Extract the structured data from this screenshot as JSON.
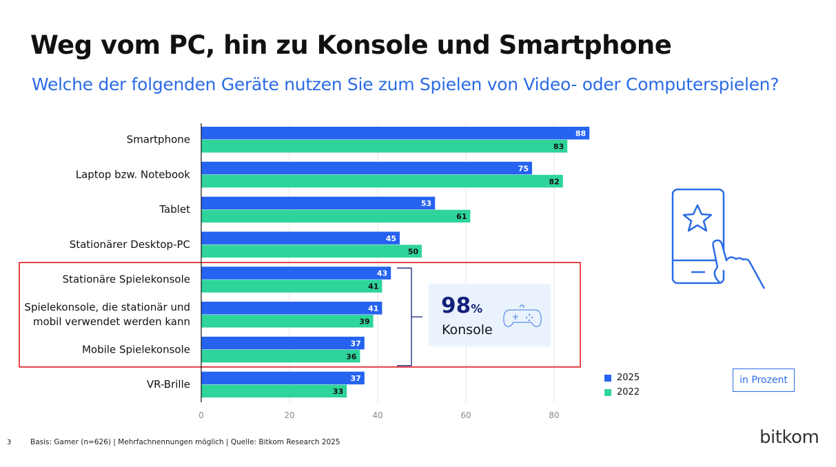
{
  "title": "Weg vom PC, hin zu Konsole und Smartphone",
  "subtitle": "Welche der folgenden Geräte nutzen Sie zum Spielen von Video- oder Computerspielen?",
  "callout": {
    "value": "98",
    "unit": "%",
    "label": "Konsole",
    "icon": "gamepad-icon"
  },
  "decor_icon": "smartphone-touch-star-icon",
  "unit_note": "in Prozent",
  "footer": {
    "page_number": "3",
    "note": "Basis: Gamer (n=626) | Mehrfachnennungen möglich | Quelle: Bitkom Research 2025"
  },
  "brand": "bitkom",
  "colors": {
    "series_2025": "#2563f0",
    "series_2022": "#2ed49a",
    "accent": "#2a6be6",
    "highlight": "#e0161e",
    "dark": "#121f7a"
  },
  "chart_data": {
    "type": "bar",
    "orientation": "horizontal",
    "categories": [
      "Smartphone",
      "Laptop bzw. Notebook",
      "Tablet",
      "Stationärer Desktop-PC",
      "Stationäre Spielekonsole",
      "Spielekonsole, die stationär und\nmobil verwendet werden kann",
      "Mobile Spielekonsole",
      "VR-Brille"
    ],
    "series": [
      {
        "name": "2025",
        "values": [
          88,
          75,
          53,
          45,
          43,
          41,
          37,
          37
        ]
      },
      {
        "name": "2022",
        "values": [
          83,
          82,
          61,
          50,
          41,
          39,
          36,
          33
        ]
      }
    ],
    "x_ticks": [
      0,
      20,
      40,
      60,
      80
    ],
    "xlim": [
      0,
      90
    ],
    "grid": true,
    "legend": "bottom-right",
    "highlight_categories": [
      4,
      5,
      6
    ]
  }
}
